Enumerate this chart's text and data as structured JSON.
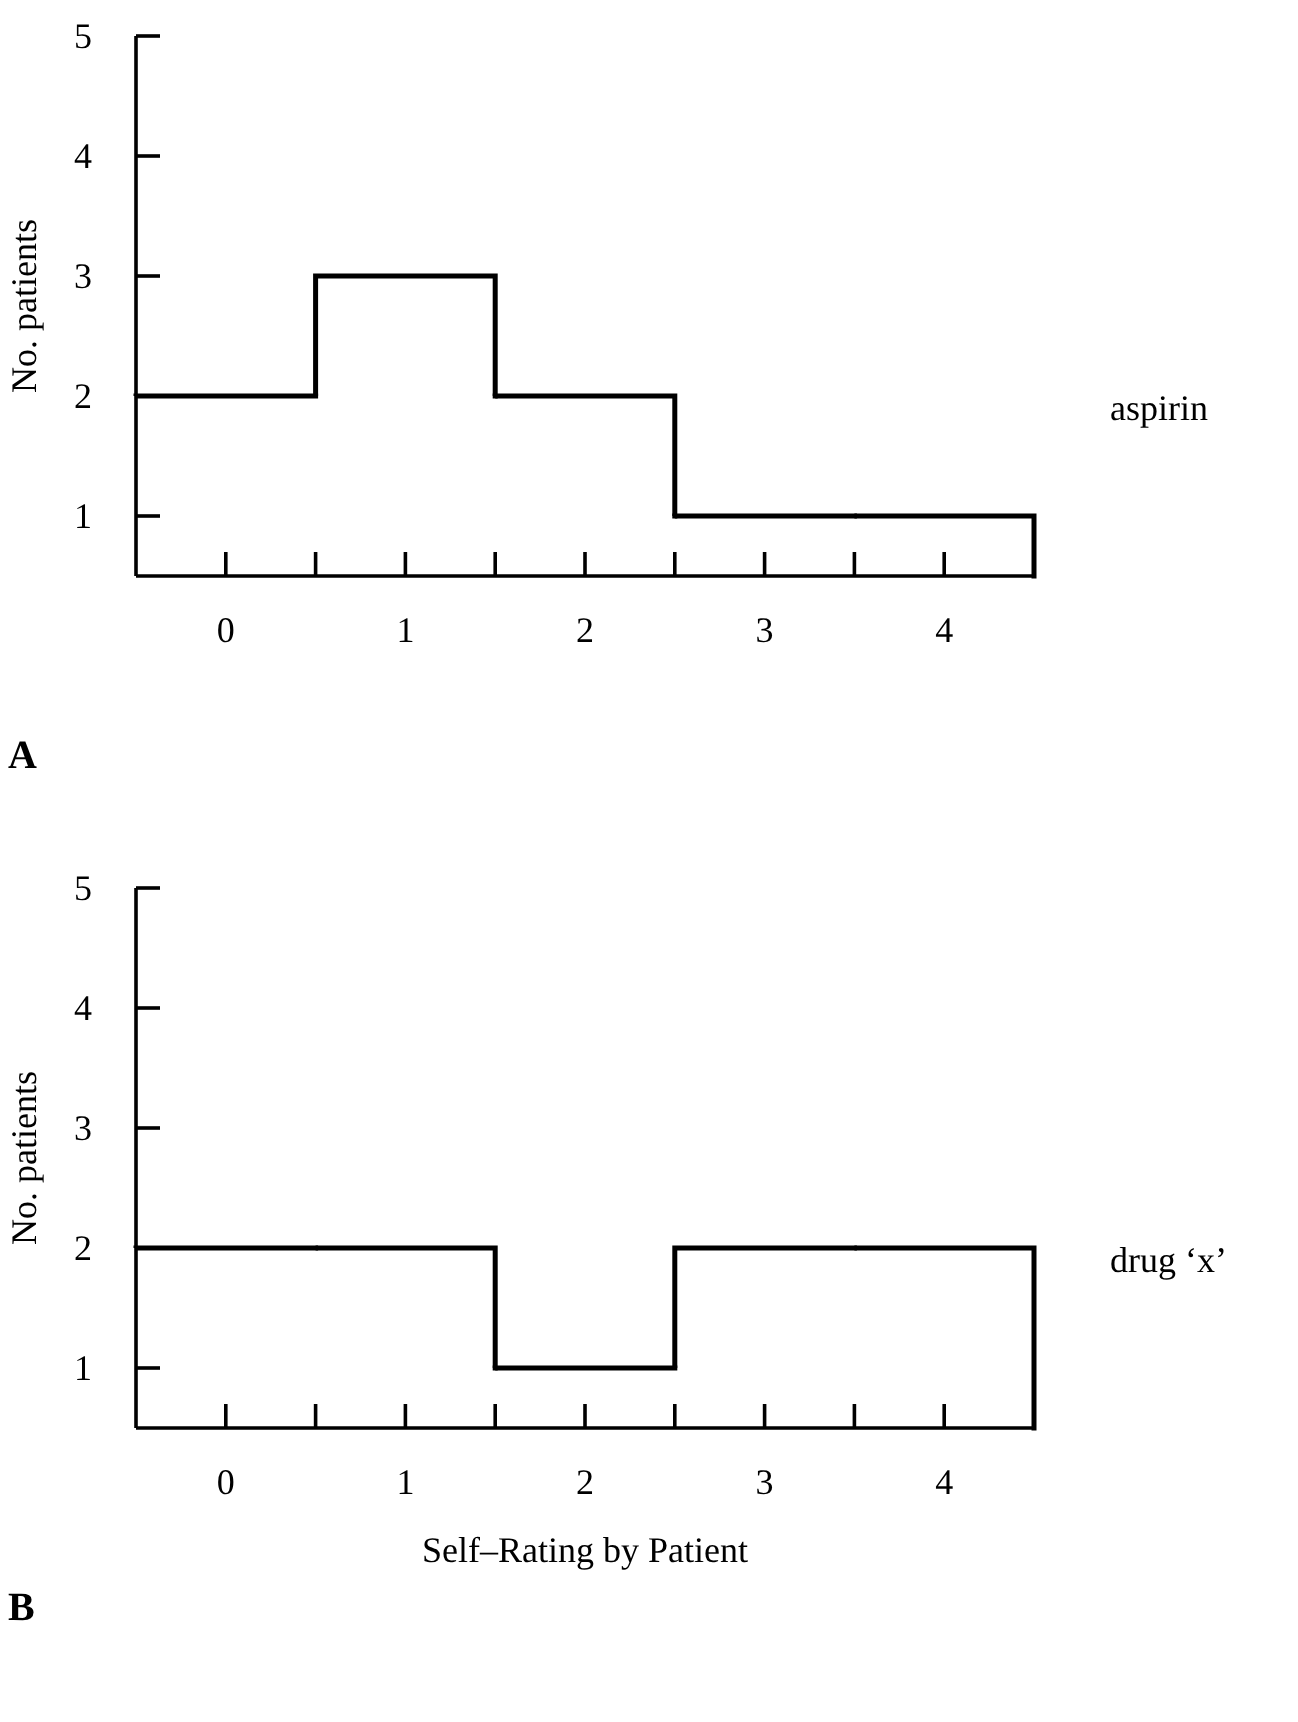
{
  "chart_data": [
    {
      "type": "histogram",
      "ylabel": "No. patients",
      "bins": [
        -0.5,
        0.5,
        1.5,
        2.5,
        3.5,
        4.5
      ],
      "series": [
        {
          "name": "aspirin",
          "color": "#000000",
          "values": [
            2,
            3,
            2,
            1,
            1
          ]
        }
      ],
      "xlim": [
        -0.5,
        4.5
      ],
      "xticks": [
        0,
        {
          "value": 0.5,
          "label": null
        },
        1,
        {
          "value": 1.5,
          "label": null
        },
        2,
        {
          "value": 2.5,
          "label": null
        },
        3,
        {
          "value": 3.5,
          "label": null
        },
        4
      ],
      "ylim": [
        0.5,
        5
      ],
      "yticks": [
        1,
        2,
        3,
        4,
        5
      ],
      "annotations": [
        "A"
      ]
    },
    {
      "type": "histogram",
      "ylabel": "No. patients",
      "xlabel": "Self–Rating by Patient",
      "bins": [
        -0.5,
        0.5,
        1.5,
        2.5,
        3.5,
        4.5
      ],
      "series": [
        {
          "name": "drug ‘x’",
          "color": "#000000",
          "values": [
            2,
            2,
            1,
            2,
            2
          ]
        }
      ],
      "xlim": [
        -0.5,
        4.5
      ],
      "xticks": [
        0,
        {
          "value": 0.5,
          "label": null
        },
        1,
        {
          "value": 1.5,
          "label": null
        },
        2,
        {
          "value": 2.5,
          "label": null
        },
        3,
        {
          "value": 3.5,
          "label": null
        },
        4
      ],
      "ylim": [
        0.5,
        5
      ],
      "yticks": [
        1,
        2,
        3,
        4,
        5
      ],
      "annotations": [
        "B"
      ]
    }
  ]
}
